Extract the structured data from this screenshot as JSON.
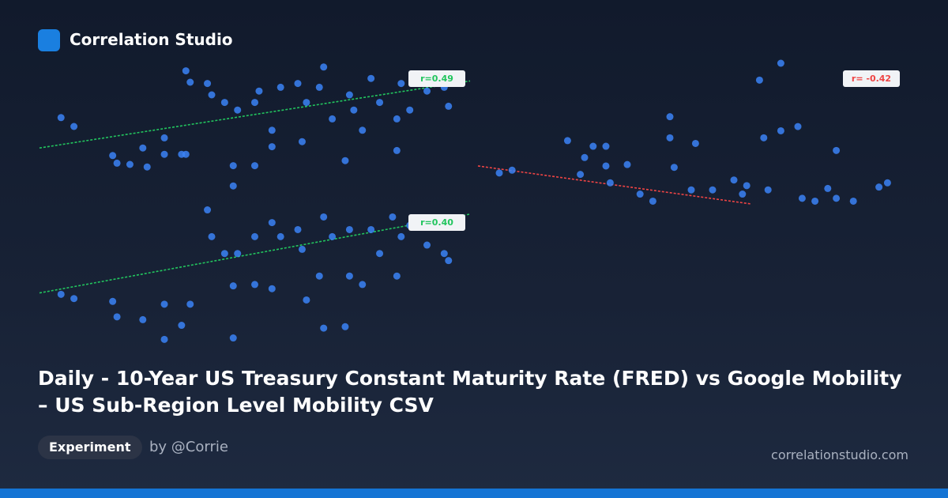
{
  "header": {
    "brand": "Correlation Studio"
  },
  "chart_data": [
    {
      "type": "scatter",
      "color": "#3b82f6",
      "xlim": [
        0,
        100
      ],
      "ylim": [
        0,
        100
      ],
      "x": [
        5,
        8,
        17,
        18,
        21,
        24,
        25,
        29,
        29,
        33,
        34,
        34,
        35,
        39,
        40,
        45,
        45,
        50,
        46,
        50,
        54,
        54,
        60,
        61,
        62,
        66,
        68,
        71,
        72,
        75,
        77,
        79,
        83,
        84,
        86,
        90,
        94,
        95,
        83,
        73,
        65,
        56,
        51,
        43
      ],
      "y": [
        57,
        50,
        27,
        21,
        20,
        33,
        18,
        41,
        28,
        28,
        28,
        94,
        85,
        84,
        75,
        19,
        3,
        19,
        63,
        69,
        34,
        47,
        84,
        38,
        69,
        97,
        56,
        23,
        75,
        47,
        88,
        69,
        31,
        84,
        63,
        78,
        81,
        66,
        56,
        63,
        81,
        81,
        78,
        69
      ],
      "trend": {
        "x": [
          0,
          100
        ],
        "y": [
          33,
          86
        ],
        "color": "#22c55e"
      },
      "annotation": "r=0.49"
    },
    {
      "type": "scatter",
      "color": "#3b82f6",
      "xlim": [
        0,
        100
      ],
      "ylim": [
        0,
        100
      ],
      "x": [
        5,
        8,
        21,
        24,
        25,
        27,
        30,
        30,
        31,
        35,
        38,
        41,
        45,
        45,
        46,
        51,
        50,
        55,
        60,
        62,
        63,
        66,
        67,
        68,
        71,
        71,
        75,
        76,
        79,
        82,
        84,
        84,
        88,
        94,
        96
      ],
      "y": [
        22,
        24,
        45,
        21,
        33,
        41,
        41,
        27,
        15,
        28,
        7,
        2,
        62,
        47,
        26,
        43,
        10,
        10,
        17,
        7,
        13,
        88,
        47,
        10,
        100,
        52,
        55,
        4,
        2,
        11,
        38,
        4,
        2,
        12,
        15
      ],
      "trend": {
        "x": [
          0,
          64
        ],
        "y": [
          27,
          0
        ],
        "color": "#ef4444"
      },
      "annotation": "r= -0.42"
    },
    {
      "type": "scatter",
      "color": "#3b82f6",
      "xlim": [
        0,
        100
      ],
      "ylim": [
        0,
        100
      ],
      "x": [
        5,
        8,
        17,
        18,
        24,
        29,
        29,
        35,
        33,
        45,
        45,
        50,
        54,
        54,
        40,
        39,
        46,
        50,
        60,
        61,
        62,
        66,
        71,
        66,
        68,
        72,
        75,
        77,
        79,
        83,
        84,
        86,
        90,
        94,
        95,
        65,
        56,
        43,
        72,
        82
      ],
      "y": [
        38,
        35,
        33,
        22,
        20,
        31,
        6,
        31,
        16,
        7,
        44,
        45,
        42,
        89,
        79,
        98,
        67,
        79,
        84,
        70,
        34,
        14,
        15,
        93,
        79,
        51,
        45,
        84,
        67,
        51,
        79,
        87,
        73,
        67,
        62,
        51,
        79,
        67,
        84,
        93
      ],
      "trend": {
        "x": [
          0,
          100
        ],
        "y": [
          39,
          95
        ],
        "color": "#22c55e"
      },
      "annotation": "r=0.40"
    }
  ],
  "title": "Daily - 10-Year US Treasury Constant Maturity Rate (FRED) vs Google Mobility – US Sub-Region Level Mobility CSV",
  "tag": "Experiment",
  "author": "by @Corrie",
  "site": "correlationstudio.com"
}
